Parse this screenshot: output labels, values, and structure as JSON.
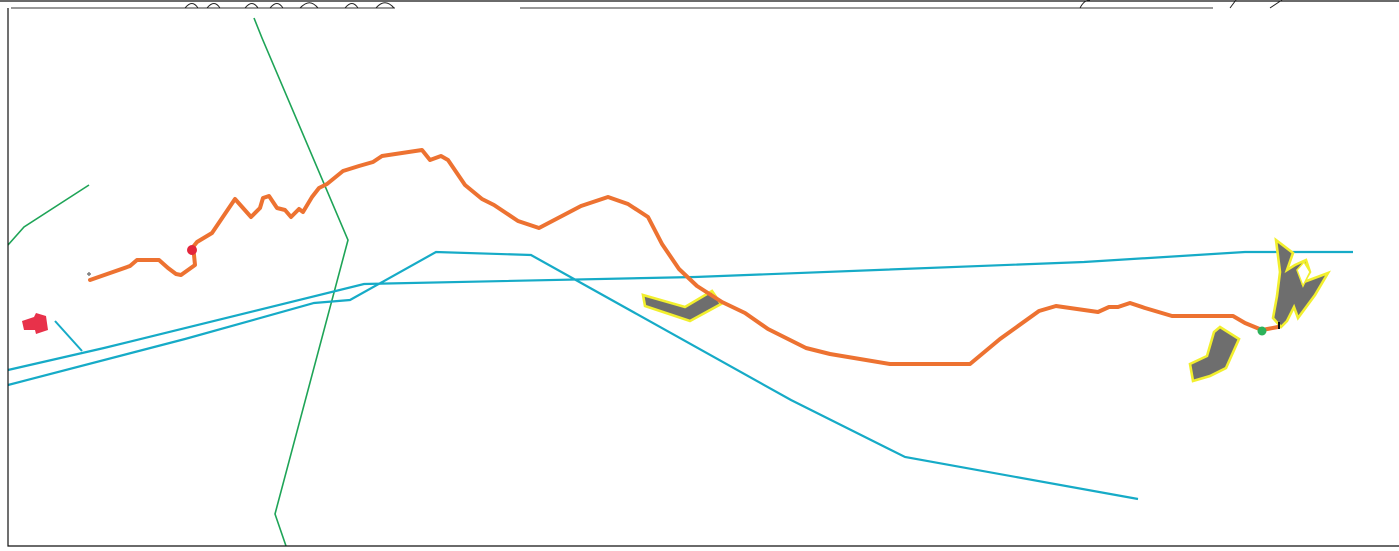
{
  "map": {
    "colors": {
      "background": "#ffffff",
      "frame": "#222222",
      "main_route": "#ed7231",
      "blue_lines": "#16abc7",
      "green_lines": "#1ea457",
      "area_fill": "#6e6e6e",
      "area_outline": "#f2ef2d",
      "start_marker": "#e3253b",
      "end_marker": "#2cb25a",
      "building": "#e8314a"
    },
    "icons": {
      "start": "red-circle-marker",
      "end": "green-circle-marker",
      "building": "red-building-shape"
    }
  }
}
